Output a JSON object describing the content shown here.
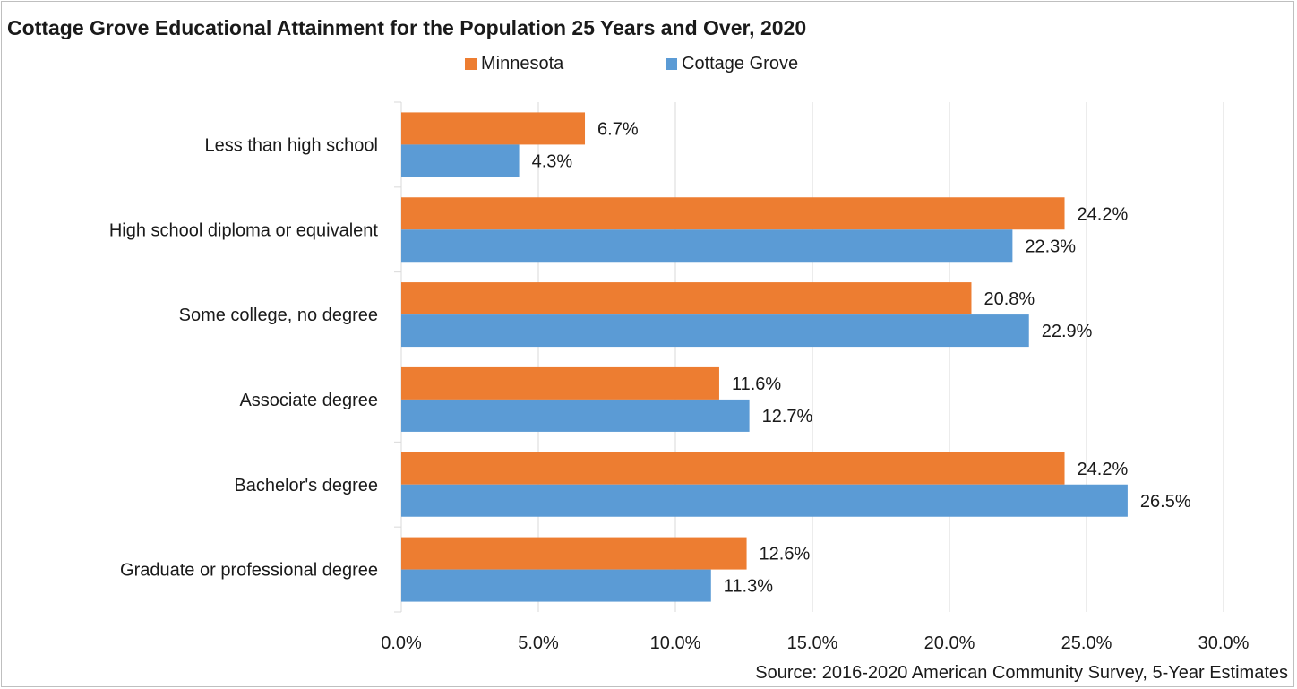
{
  "chart_data": {
    "type": "bar",
    "orientation": "horizontal",
    "title": "Cottage Grove Educational Attainment for the Population 25 Years and Over, 2020",
    "categories": [
      "Less than high school",
      "High school diploma or equivalent",
      "Some college, no degree",
      "Associate degree",
      "Bachelor's degree",
      "Graduate or professional degree"
    ],
    "series": [
      {
        "name": "Minnesota",
        "color": "#ED7D31",
        "values": [
          6.7,
          24.2,
          20.8,
          11.6,
          24.2,
          12.6
        ],
        "labels": [
          "6.7%",
          "24.2%",
          "20.8%",
          "11.6%",
          "24.2%",
          "12.6%"
        ]
      },
      {
        "name": "Cottage Grove",
        "color": "#5B9BD5",
        "values": [
          4.3,
          22.3,
          22.9,
          12.7,
          26.5,
          11.3
        ],
        "labels": [
          "4.3%",
          "22.3%",
          "22.9%",
          "12.7%",
          "26.5%",
          "11.3%"
        ]
      }
    ],
    "xlim": [
      0,
      30
    ],
    "xticks": [
      0,
      5,
      10,
      15,
      20,
      25,
      30
    ],
    "xtick_labels": [
      "0.0%",
      "5.0%",
      "10.0%",
      "15.0%",
      "20.0%",
      "25.0%",
      "30.0%"
    ],
    "grid": true,
    "legend_position": "top",
    "source": "Source: 2016-2020 American Community Survey, 5-Year Estimates"
  }
}
